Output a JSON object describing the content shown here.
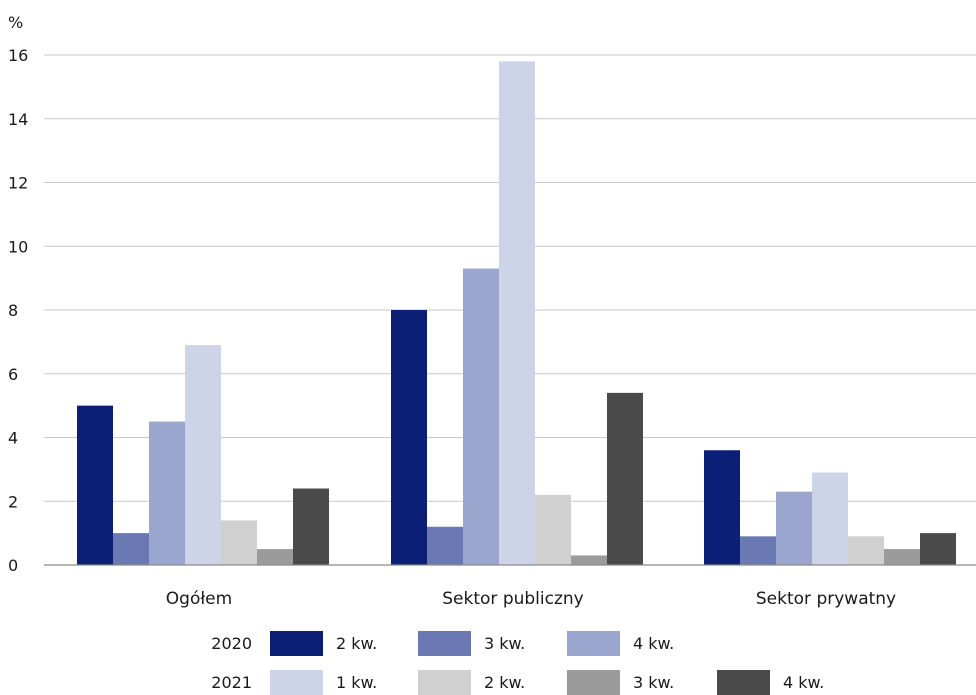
{
  "chart_data": {
    "type": "bar",
    "ylabel": "%",
    "ylim": [
      0,
      16
    ],
    "yticks": [
      0,
      2,
      4,
      6,
      8,
      10,
      12,
      14,
      16
    ],
    "grid": true,
    "legend_position": "bottom",
    "categories": [
      "Ogółem",
      "Sektor publiczny",
      "Sektor prywatny"
    ],
    "series": [
      {
        "year": "2020",
        "name": "2 kw.",
        "color": "#0b1f77",
        "values": [
          5.0,
          8.0,
          3.6
        ]
      },
      {
        "year": "2020",
        "name": "3 kw.",
        "color": "#6a78b3",
        "values": [
          1.0,
          1.2,
          0.9
        ]
      },
      {
        "year": "2020",
        "name": "4 kw.",
        "color": "#9aa6cd",
        "values": [
          4.5,
          9.3,
          2.3
        ]
      },
      {
        "year": "2021",
        "name": "1 kw.",
        "color": "#cdd4e8",
        "values": [
          6.9,
          15.8,
          2.9
        ]
      },
      {
        "year": "2021",
        "name": "2 kw.",
        "color": "#d0d0d0",
        "values": [
          1.4,
          2.2,
          0.9
        ]
      },
      {
        "year": "2021",
        "name": "3 kw.",
        "color": "#9b9b9b",
        "values": [
          0.5,
          0.3,
          0.5
        ]
      },
      {
        "year": "2021",
        "name": "4 kw.",
        "color": "#4a4a4a",
        "values": [
          2.4,
          5.4,
          1.0
        ]
      }
    ],
    "legend_rows": [
      {
        "year": "2020",
        "series_index": [
          0,
          1,
          2
        ]
      },
      {
        "year": "2021",
        "series_index": [
          3,
          4,
          5,
          6
        ]
      }
    ]
  }
}
